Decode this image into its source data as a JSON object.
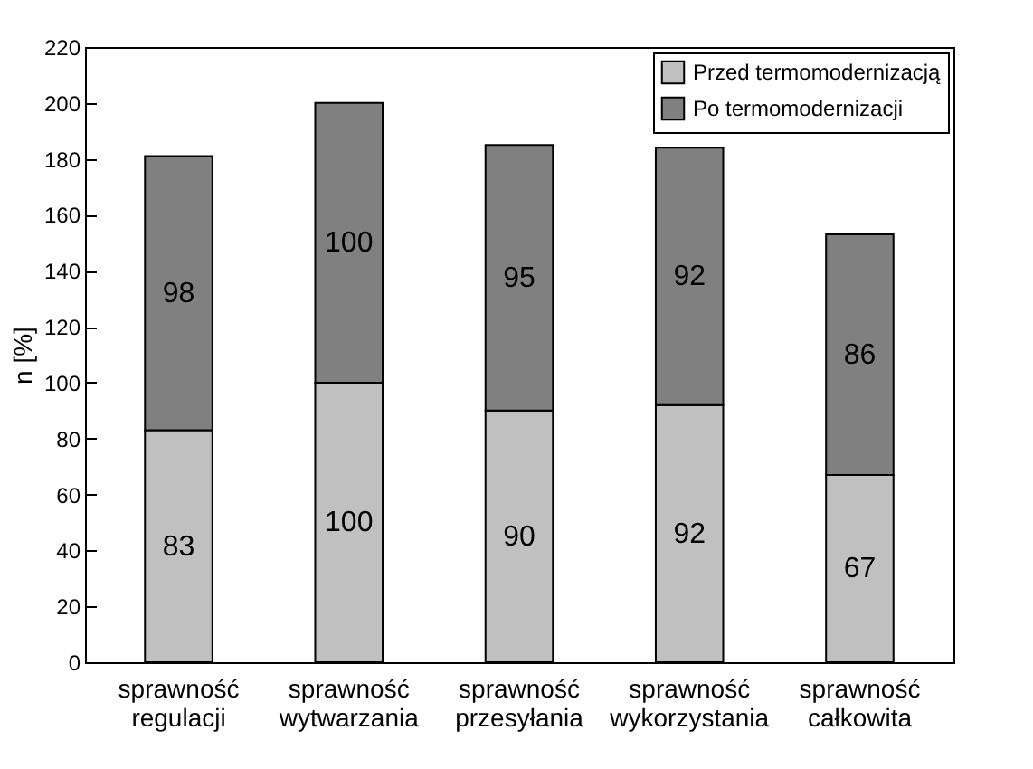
{
  "chart_data": {
    "type": "bar",
    "stacked": true,
    "ylabel": "n [%]",
    "categories": [
      "sprawność\nregulacji",
      "sprawność\nwytwarzania",
      "sprawność\nprzesyłania",
      "sprawność\nwykorzystania",
      "sprawność\ncałkowita"
    ],
    "series": [
      {
        "name": "Przed termomodernizacją",
        "color": "#c0c0c0",
        "values": [
          83,
          100,
          90,
          92,
          67
        ]
      },
      {
        "name": "Po termomodernizacji",
        "color": "#808080",
        "values": [
          98,
          100,
          95,
          92,
          86
        ]
      }
    ],
    "ylim": [
      0,
      220
    ],
    "yticks": [
      0,
      20,
      40,
      60,
      80,
      100,
      120,
      140,
      160,
      180,
      200,
      220
    ],
    "data_labels": true,
    "legend": "top right",
    "grid": false
  }
}
